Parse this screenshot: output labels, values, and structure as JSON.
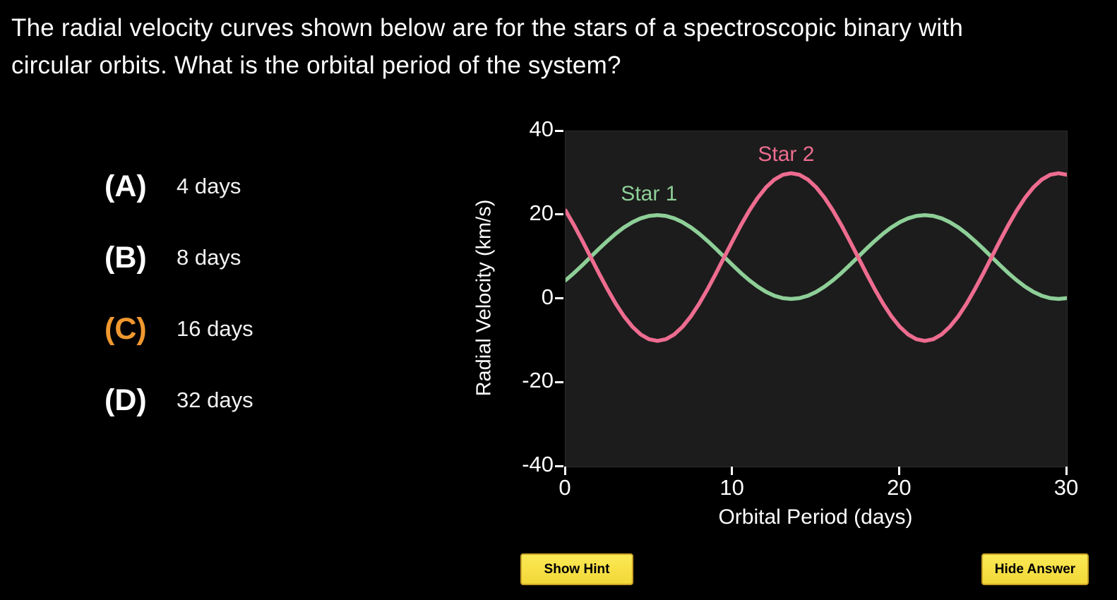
{
  "question": {
    "text": "The radial velocity curves shown below are for the stars of a spectroscopic binary with circular orbits. What is the orbital period of the system?"
  },
  "options": [
    {
      "letter": "(A)",
      "text": "4 days",
      "highlighted": false
    },
    {
      "letter": "(B)",
      "text": "8 days",
      "highlighted": false
    },
    {
      "letter": "(C)",
      "text": "16 days",
      "highlighted": true
    },
    {
      "letter": "(D)",
      "text": "32 days",
      "highlighted": false
    }
  ],
  "buttons": {
    "show_hint": "Show Hint",
    "hide_answer": "Hide Answer"
  },
  "colors": {
    "page_bg": "#000000",
    "text": "#ffffff",
    "highlight": "#f0982f",
    "star1": "#8ecf98",
    "star2": "#ed6c8f",
    "plot_bg": "#1c1c1c",
    "button_bg": "#f8e24c",
    "button_border": "#c9a227"
  },
  "chart_data": {
    "type": "line",
    "title": "",
    "xlabel": "Orbital Period (days)",
    "ylabel": "Radial Velocity (km/s)",
    "xlim": [
      0,
      30
    ],
    "ylim": [
      -40,
      40
    ],
    "x_ticks": [
      0,
      10,
      20,
      30
    ],
    "y_ticks": [
      40,
      20,
      0,
      -20,
      -40
    ],
    "grid": false,
    "legend_position": "inline-annotations",
    "period_days": 16,
    "mean_velocity_km_s": 10,
    "x_start": 0,
    "x_step": 0.5,
    "series": [
      {
        "name": "Star 1",
        "color_key": "star1",
        "amplitude_km_s": 10,
        "label_pos": {
          "x": 5.0,
          "y": 25
        },
        "values": [
          4.44,
          6.17,
          8.05,
          10,
          11.95,
          13.83,
          15.56,
          17.07,
          18.31,
          19.24,
          19.81,
          20,
          19.81,
          19.24,
          18.31,
          17.07,
          15.56,
          13.83,
          11.95,
          10,
          8.05,
          6.17,
          4.44,
          2.93,
          1.69,
          0.76,
          0.19,
          0,
          0.19,
          0.76,
          1.69,
          2.93,
          4.44,
          6.17,
          8.05,
          10,
          11.95,
          13.83,
          15.56,
          17.07,
          18.31,
          19.24,
          19.81,
          20,
          19.81,
          19.24,
          18.31,
          17.07,
          15.56,
          13.83,
          11.95,
          10,
          8.05,
          6.17,
          4.44,
          2.93,
          1.69,
          0.76,
          0.19,
          0,
          0.19
        ]
      },
      {
        "name": "Star 2",
        "color_key": "star2",
        "amplitude_km_s": 20,
        "label_pos": {
          "x": 13.2,
          "y": 34.5
        },
        "values": [
          21.11,
          17.65,
          13.9,
          10,
          6.1,
          2.35,
          -1.11,
          -4.14,
          -6.63,
          -8.48,
          -9.62,
          -10,
          -9.62,
          -8.48,
          -6.63,
          -4.14,
          -1.11,
          2.35,
          6.1,
          10,
          13.9,
          17.65,
          21.11,
          24.14,
          26.63,
          28.48,
          29.62,
          30,
          29.62,
          28.48,
          26.63,
          24.14,
          21.11,
          17.65,
          13.9,
          10,
          6.1,
          2.35,
          -1.11,
          -4.14,
          -6.63,
          -8.48,
          -9.62,
          -10,
          -9.62,
          -8.48,
          -6.63,
          -4.14,
          -1.11,
          2.35,
          6.1,
          10,
          13.9,
          17.65,
          21.11,
          24.14,
          26.63,
          28.48,
          29.62,
          30,
          29.62
        ]
      }
    ]
  }
}
